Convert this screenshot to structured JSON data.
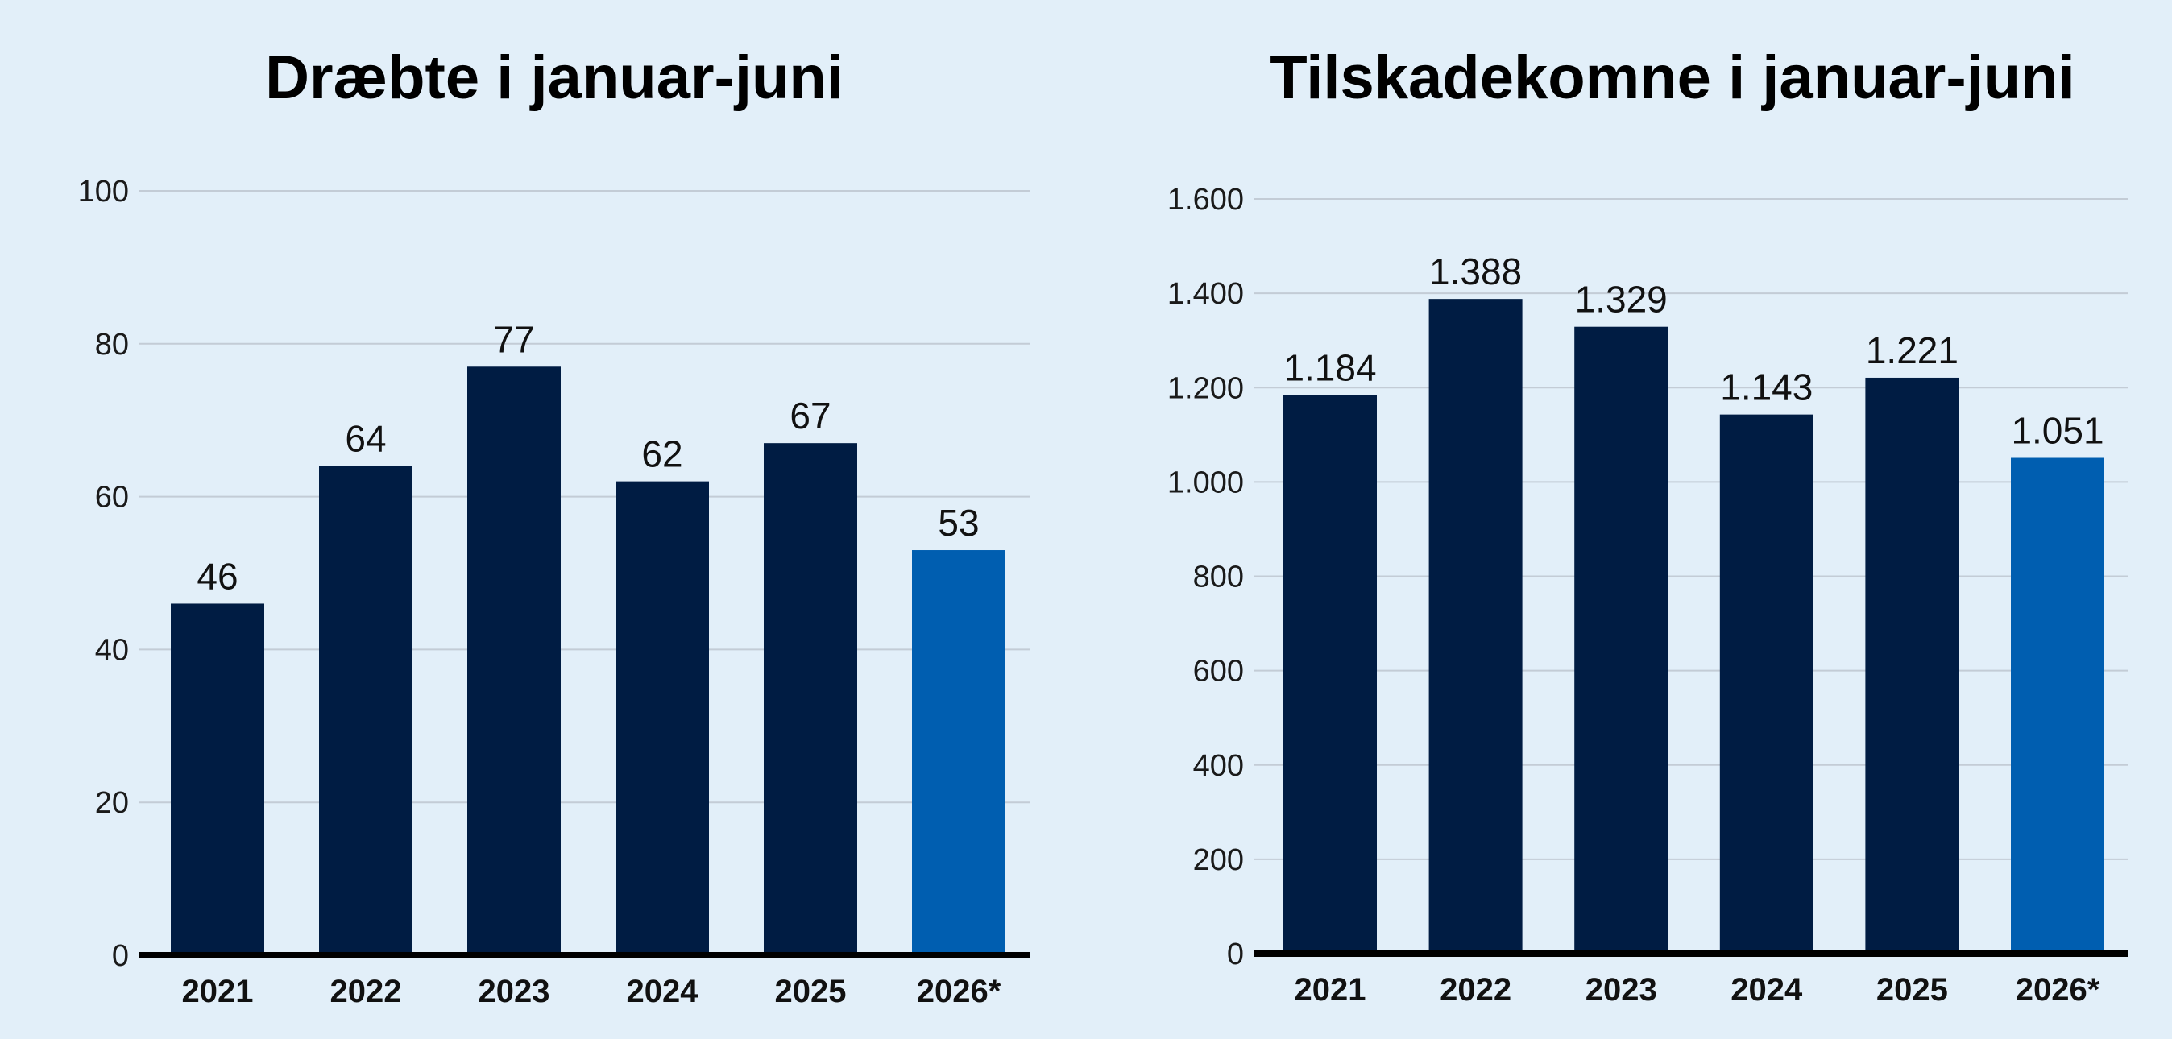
{
  "colors": {
    "background": "#e2eff9",
    "bar_default": "#001c43",
    "bar_highlight": "#005eb0"
  },
  "chart_data": [
    {
      "type": "bar",
      "title": "Dræbte i januar-juni",
      "categories": [
        "2021",
        "2022",
        "2023",
        "2024",
        "2025",
        "2026*"
      ],
      "values": [
        46,
        64,
        77,
        62,
        67,
        53
      ],
      "value_labels": [
        "46",
        "64",
        "77",
        "62",
        "67",
        "53"
      ],
      "highlight_index": 5,
      "ylim": [
        0,
        100
      ],
      "yticks": [
        0,
        20,
        40,
        60,
        80,
        100
      ],
      "ytick_labels": [
        "0",
        "20",
        "40",
        "60",
        "80",
        "100"
      ],
      "grid": true,
      "xlabel": "",
      "ylabel": ""
    },
    {
      "type": "bar",
      "title": "Tilskadekomne i januar-juni",
      "categories": [
        "2021",
        "2022",
        "2023",
        "2024",
        "2025",
        "2026*"
      ],
      "values": [
        1184,
        1388,
        1329,
        1143,
        1221,
        1051
      ],
      "value_labels": [
        "1.184",
        "1.388",
        "1.329",
        "1.143",
        "1.221",
        "1.051"
      ],
      "highlight_index": 5,
      "ylim": [
        0,
        1600
      ],
      "yticks": [
        0,
        200,
        400,
        600,
        800,
        1000,
        1200,
        1400,
        1600
      ],
      "ytick_labels": [
        "0",
        "200",
        "400",
        "600",
        "800",
        "1.000",
        "1.200",
        "1.400",
        "1.600"
      ],
      "grid": true,
      "xlabel": "",
      "ylabel": ""
    }
  ]
}
